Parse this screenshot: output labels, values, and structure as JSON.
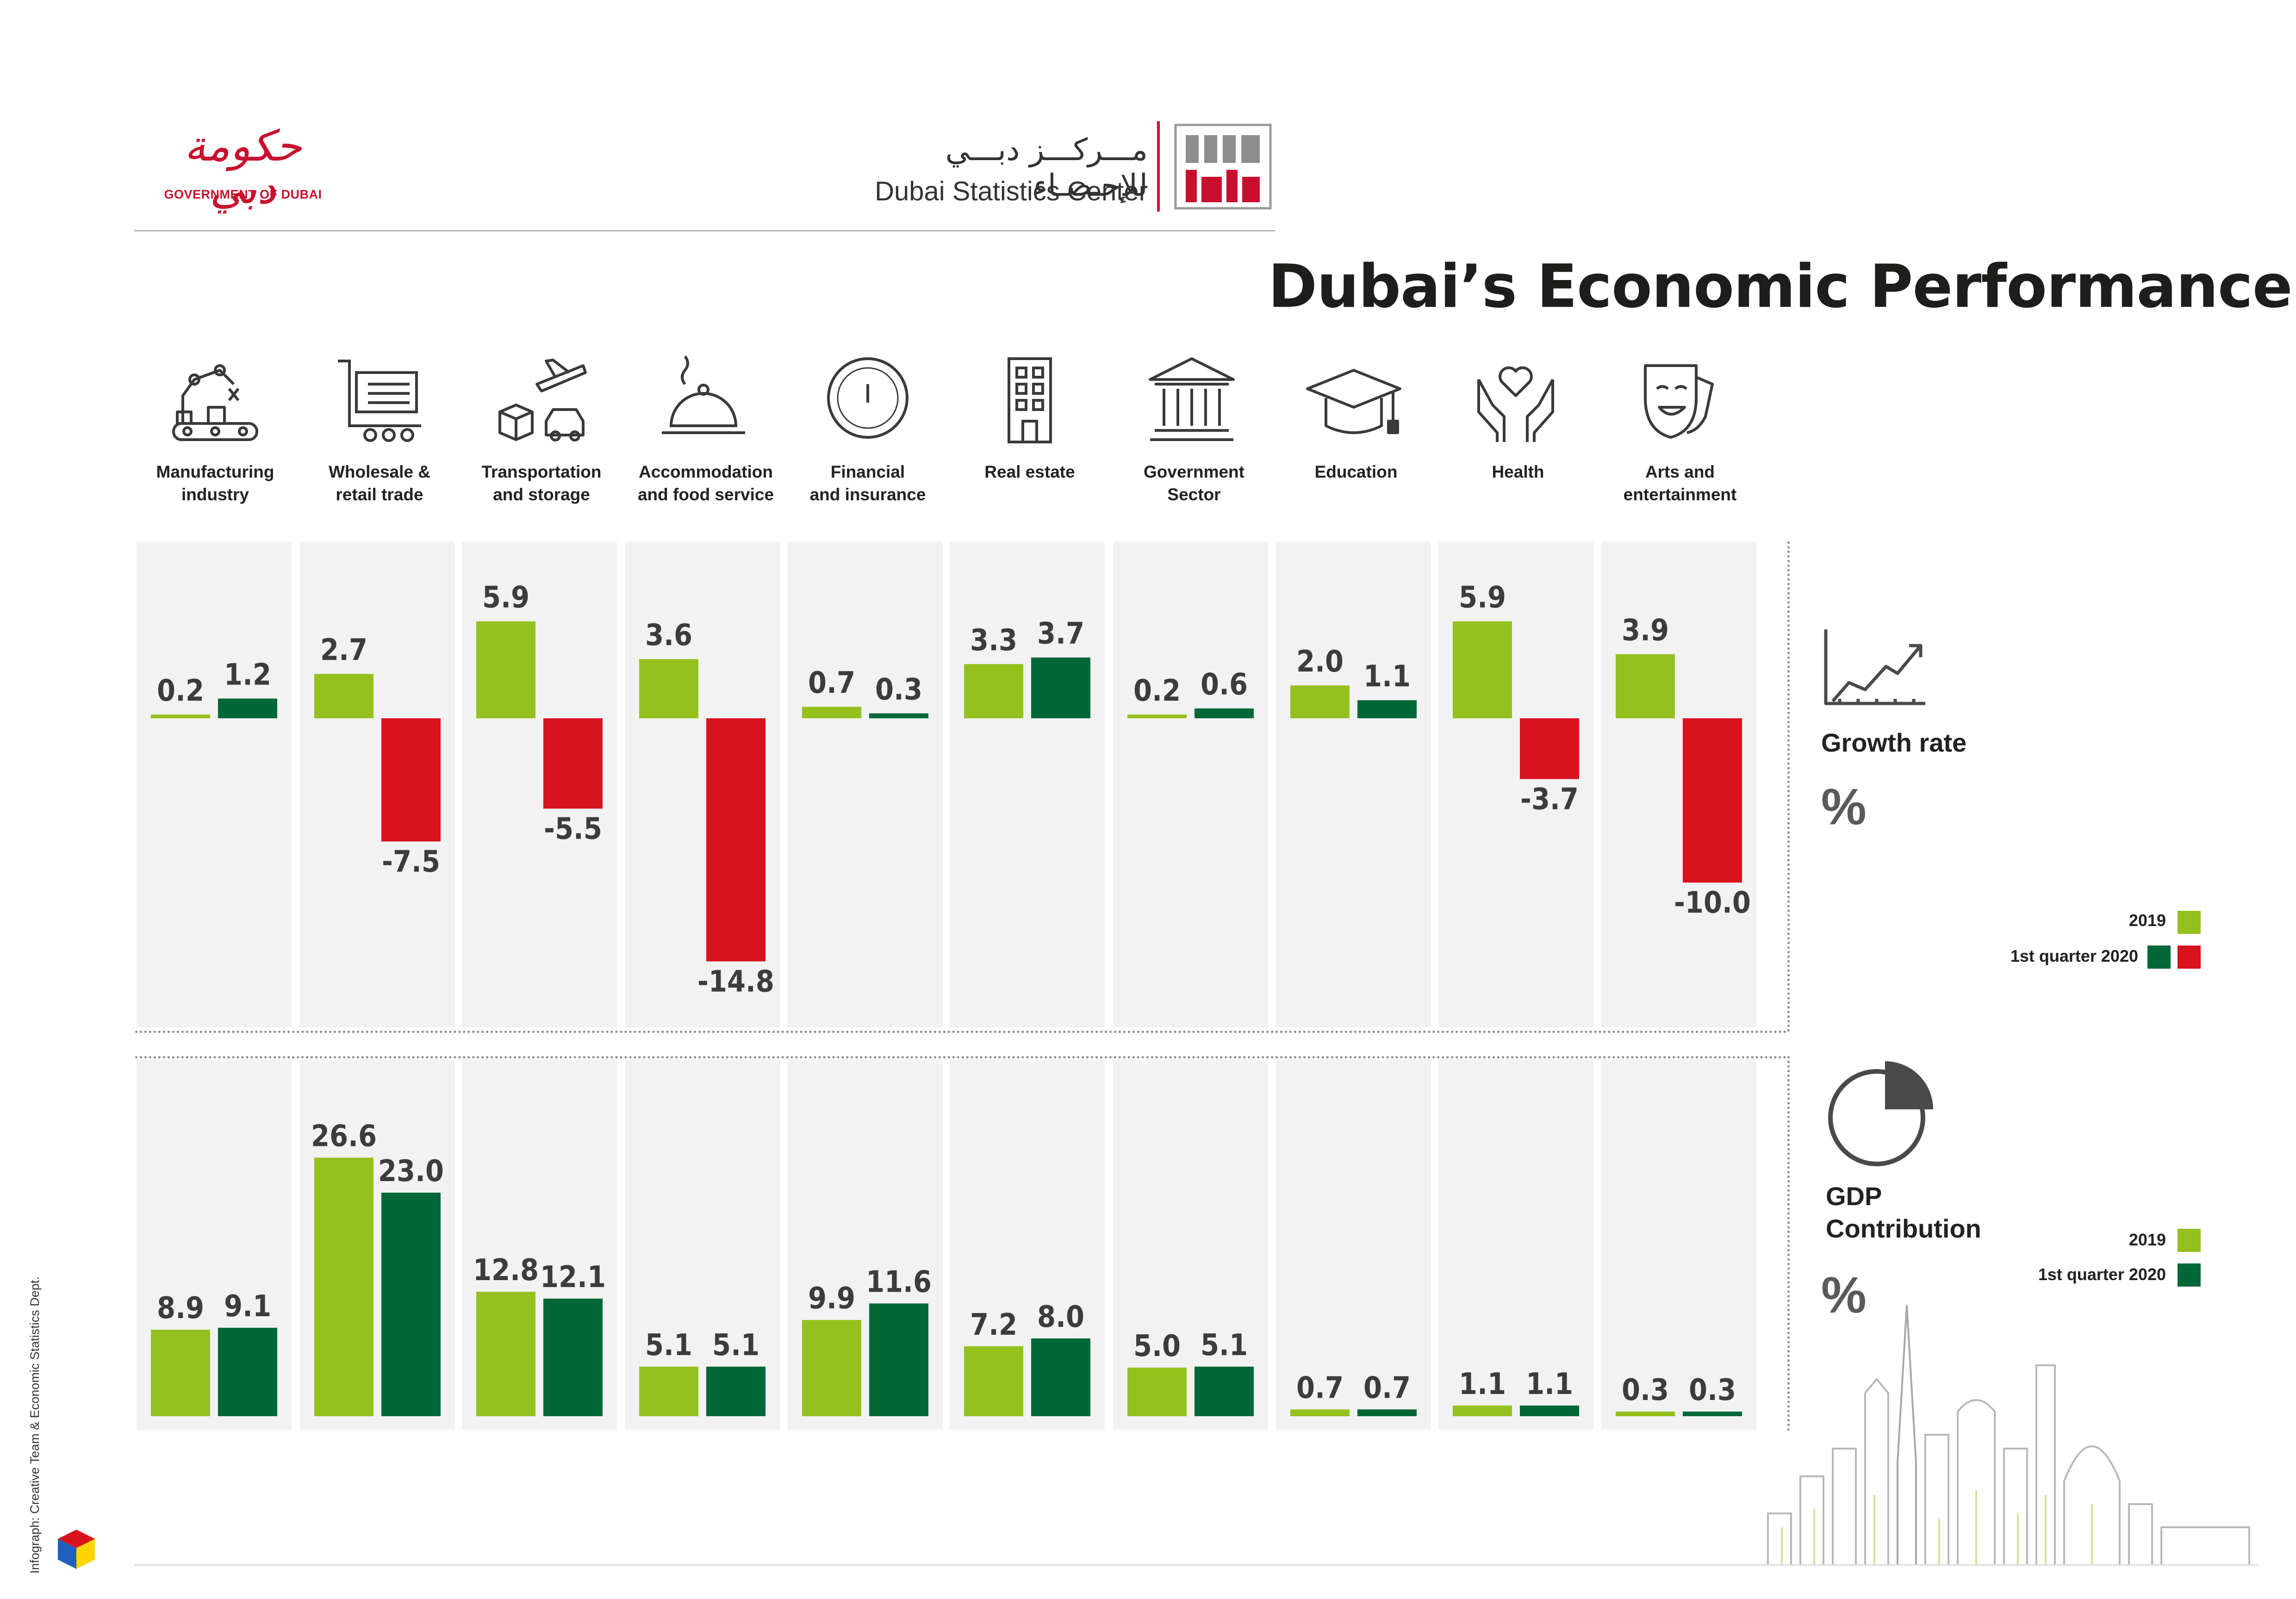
{
  "header": {
    "gov_logo_ar": "حكومة دبي",
    "gov_logo_en": "GOVERNMENT OF DUBAI",
    "center_ar": "مـــركـــز دبـــي للإحـصـاء",
    "center_en": "Dubai Statistics Center",
    "center_logo_text": "دبي إحصاء"
  },
  "title": "Dubai’s Economic Performance",
  "colors": {
    "y2019": "#95c11f",
    "q1_2020_positive": "#006837",
    "q1_2020_negative": "#d7141e",
    "panel_bg": "#f2f2f2",
    "value_text": "#3c3c3c"
  },
  "sectors": [
    {
      "label_line1": "Manufacturing",
      "label_line2": "industry",
      "icon": "factory-robot-icon"
    },
    {
      "label_line1": "Wholesale &",
      "label_line2": "retail trade",
      "icon": "shopping-cart-icon"
    },
    {
      "label_line1": "Transportation",
      "label_line2": "and storage",
      "icon": "plane-taxi-box-icon"
    },
    {
      "label_line1": "Accommodation",
      "label_line2": "and food service",
      "icon": "food-cloche-icon"
    },
    {
      "label_line1": "Financial",
      "label_line2": "and insurance",
      "icon": "dirham-coin-icon"
    },
    {
      "label_line1": "Real estate",
      "label_line2": "",
      "icon": "building-icon"
    },
    {
      "label_line1": "Government",
      "label_line2": "Sector",
      "icon": "government-pillars-icon"
    },
    {
      "label_line1": "Education",
      "label_line2": "",
      "icon": "graduation-cap-icon"
    },
    {
      "label_line1": "Health",
      "label_line2": "",
      "icon": "hands-heart-icon"
    },
    {
      "label_line1": "Arts and",
      "label_line2": "entertainment",
      "icon": "theatre-masks-icon"
    }
  ],
  "growth_panel": {
    "title": "Growth rate",
    "unit": "%",
    "icon": "line-chart-icon",
    "legend": {
      "y2019": "2019",
      "q1_2020": "1st quarter 2020"
    }
  },
  "gdp_panel": {
    "title_line1": "GDP",
    "title_line2": "Contribution",
    "unit": "%",
    "icon": "pie-chart-icon",
    "legend": {
      "y2019": "2019",
      "q1_2020": "1st quarter 2020"
    }
  },
  "credit": "Infograph: Creative Team & Economic Statistics Dept.",
  "chart_data": [
    {
      "type": "bar",
      "title": "Growth rate",
      "ylabel": "%",
      "categories": [
        "Manufacturing industry",
        "Wholesale & retail trade",
        "Transportation and storage",
        "Accommodation and food service",
        "Financial and insurance",
        "Real estate",
        "Government Sector",
        "Education",
        "Health",
        "Arts and entertainment"
      ],
      "series": [
        {
          "name": "2019",
          "values": [
            0.2,
            2.7,
            5.9,
            3.6,
            0.7,
            3.3,
            0.2,
            2.0,
            5.9,
            3.9
          ],
          "labels": [
            "0.2",
            "2.7",
            "5.9",
            "3.6",
            "0.7",
            "3.3",
            "0.2",
            "2.0",
            "5.9",
            "3.9"
          ]
        },
        {
          "name": "1st quarter 2020",
          "values": [
            1.2,
            -7.5,
            -5.5,
            -14.8,
            0.3,
            3.7,
            0.6,
            1.1,
            -3.7,
            -10.0
          ],
          "labels": [
            "1.2",
            "-7.5",
            "-5.5",
            "-14.8",
            "0.3",
            "3.7",
            "0.6",
            "1.1",
            "-3.7",
            "-10.0"
          ]
        }
      ],
      "ylim": [
        -15,
        6
      ]
    },
    {
      "type": "bar",
      "title": "GDP Contribution",
      "ylabel": "%",
      "categories": [
        "Manufacturing industry",
        "Wholesale & retail trade",
        "Transportation and storage",
        "Accommodation and food service",
        "Financial and insurance",
        "Real estate",
        "Government Sector",
        "Education",
        "Health",
        "Arts and entertainment"
      ],
      "series": [
        {
          "name": "2019",
          "values": [
            8.9,
            26.6,
            12.8,
            5.1,
            9.9,
            7.2,
            5.0,
            0.7,
            1.1,
            0.3
          ],
          "labels": [
            "8.9",
            "26.6",
            "12.8",
            "5.1",
            "9.9",
            "7.2",
            "5.0",
            "0.7",
            "1.1",
            "0.3"
          ]
        },
        {
          "name": "1st quarter 2020",
          "values": [
            9.1,
            23.0,
            12.1,
            5.1,
            11.6,
            8.0,
            5.1,
            0.7,
            1.1,
            0.3
          ],
          "labels": [
            "9.1",
            "23.0",
            "12.1",
            "5.1",
            "11.6",
            "8.0",
            "5.1",
            "0.7",
            "1.1",
            "0.3"
          ]
        }
      ],
      "ylim": [
        0,
        27
      ]
    }
  ]
}
